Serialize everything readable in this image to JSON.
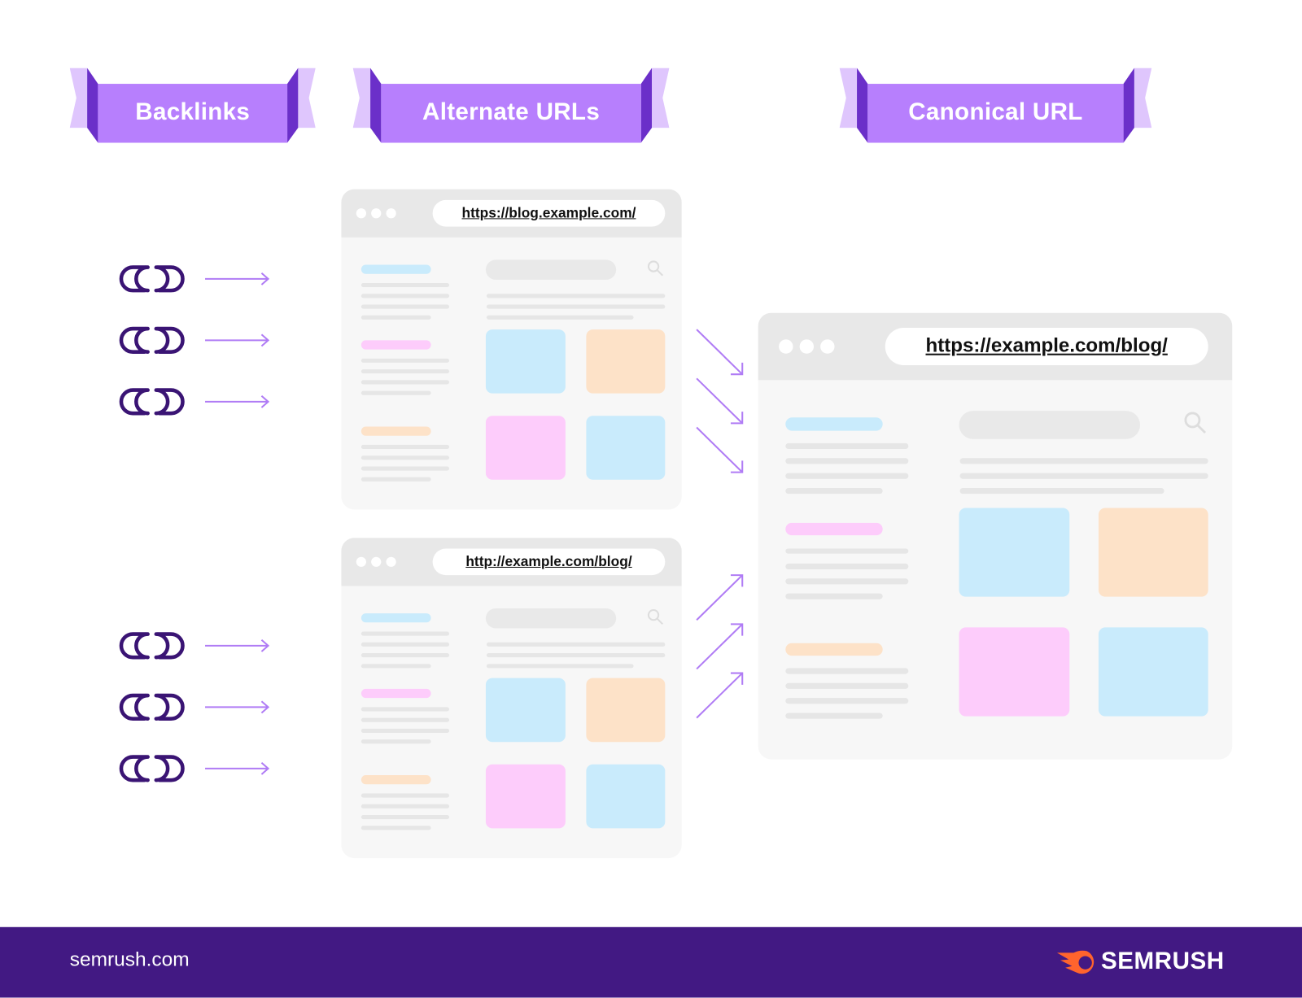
{
  "headers": {
    "backlinks": "Backlinks",
    "alternate": "Alternate URLs",
    "canonical": "Canonical URL"
  },
  "windows": {
    "alt1": {
      "url": "https://blog.example.com/"
    },
    "alt2": {
      "url": "http://example.com/blog/"
    },
    "canonical": {
      "url": "https://example.com/blog/"
    }
  },
  "icons": {
    "backlink": "link-chain-icon",
    "arrow": "arrow-right-icon",
    "search": "search-icon"
  },
  "colors": {
    "ribbon": "#b77ffd",
    "ribbon_dark": "#6b2fc9",
    "ribbon_light": "#dfc6fd",
    "link": "#3a1474",
    "arrow": "#b07cf5",
    "blue": "#c9ebfc",
    "orange": "#fde2c8",
    "pink": "#fdccfb",
    "footer": "#421983",
    "brand_orange": "#ff642d"
  },
  "footer": {
    "site": "semrush.com",
    "brand": "SEMRUSH"
  }
}
